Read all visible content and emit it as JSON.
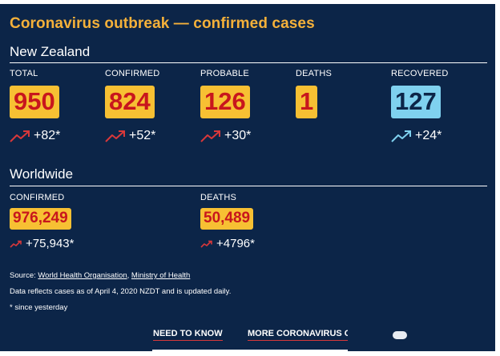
{
  "title": "Coronavirus outbreak — confirmed cases",
  "nz": {
    "heading": "New Zealand",
    "stats": [
      {
        "label": "TOTAL",
        "value": "950",
        "delta": "+82*"
      },
      {
        "label": "CONFIRMED",
        "value": "824",
        "delta": "+52*"
      },
      {
        "label": "PROBABLE",
        "value": "126",
        "delta": "+30*"
      },
      {
        "label": "DEATHS",
        "value": "1"
      },
      {
        "label": "RECOVERED",
        "value": "127",
        "delta": "+24*"
      }
    ]
  },
  "world": {
    "heading": "Worldwide",
    "stats": [
      {
        "label": "CONFIRMED",
        "value": "976,249",
        "delta": "+75,943*"
      },
      {
        "label": "DEATHS",
        "value": "50,489",
        "delta": "+4796*"
      }
    ]
  },
  "source": {
    "prefix": "Source: ",
    "link1": "World Health Organisation",
    "separator": ", ",
    "link2": "Ministry of Health"
  },
  "notes": {
    "reflects": "Data reflects cases as of April 4, 2020 NZDT and is updated daily.",
    "since": "* since yesterday"
  },
  "footer": {
    "link1": "NEED TO KNOW",
    "link2": "MORE CORONAVIRUS C"
  },
  "colors": {
    "background": "#0c2548",
    "title": "#f5b13a",
    "box": "#f7c033",
    "box_text": "#c8161d",
    "recovered_box": "#7fd1ef",
    "trend_red": "#d9383a",
    "trend_blue": "#7fd1ef"
  },
  "icons": {
    "trend": "trending-up-icon"
  }
}
